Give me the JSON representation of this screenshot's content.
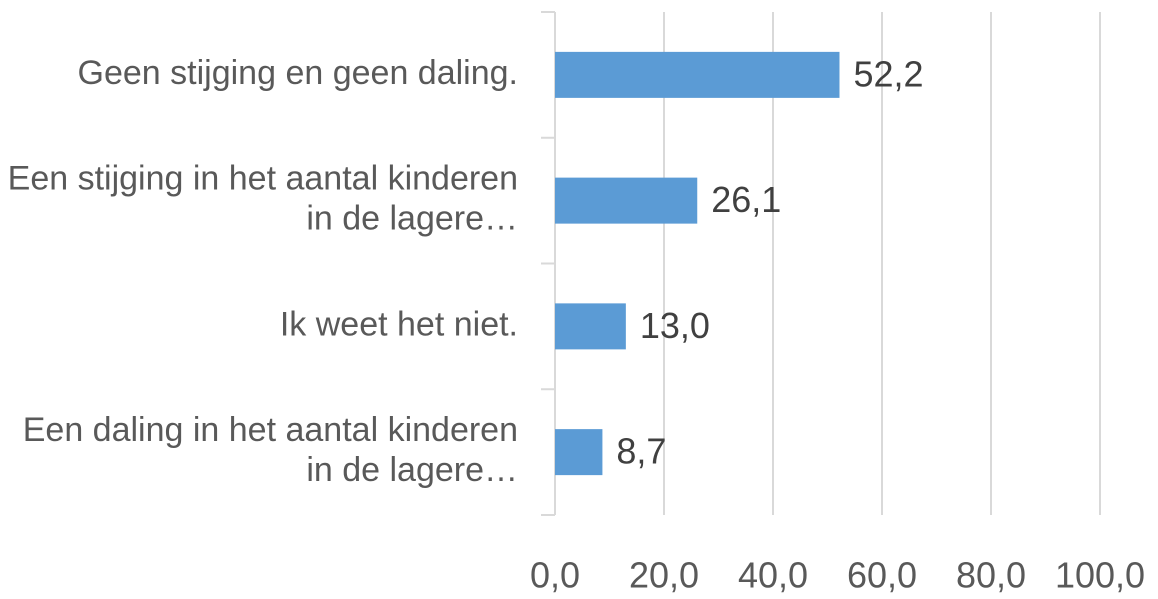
{
  "chart_data": {
    "type": "bar",
    "orientation": "horizontal",
    "categories": [
      "Geen stijging en geen daling.",
      "Een stijging in het aantal kinderen in de lagere…",
      "Ik weet het niet.",
      "Een daling in het aantal kinderen in de lagere…"
    ],
    "values": [
      52.2,
      26.1,
      13.0,
      8.7
    ],
    "value_labels": [
      "52,2",
      "26,1",
      "13,0",
      "8,7"
    ],
    "color": "#5b9bd5",
    "xlim": [
      0,
      100
    ],
    "xticks": [
      {
        "value": 0,
        "label": "0,0"
      },
      {
        "value": 20,
        "label": "20,0"
      },
      {
        "value": 40,
        "label": "40,0"
      },
      {
        "value": 60,
        "label": "60,0"
      },
      {
        "value": 80,
        "label": "80,0"
      },
      {
        "value": 100,
        "label": "100,0"
      }
    ],
    "grid": true
  }
}
